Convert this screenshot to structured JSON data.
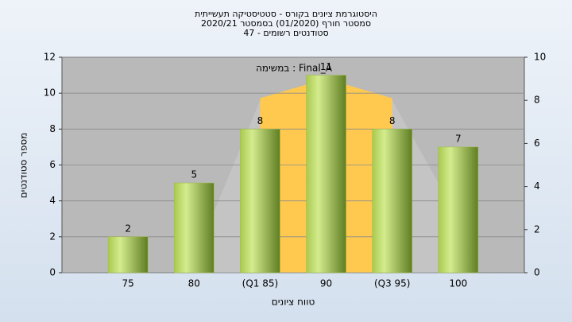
{
  "chart_data": {
    "type": "bar",
    "title": "היסטוגרמת ציונים בקורס - סטטיסטיקה תעשייתית",
    "subtitle": [
      "2020/21 סמסטר חורף (01/2020) בסמסטר",
      "47 - סטודנטים רשומים"
    ],
    "annotation": "במשימה : Final_A",
    "x_label": "טווח ציונים",
    "y_label": "מספר סטודנטים",
    "categories": [
      "75",
      "80",
      "(Q1 85)",
      "90",
      "(Q3 95)",
      "100"
    ],
    "values": [
      2,
      5,
      8,
      11,
      8,
      7
    ],
    "color": "#9dbb45",
    "areas": [
      {
        "color": "#c4c4c4",
        "axis": "y2",
        "values": [
          null,
          0.6,
          8,
          8.8,
          8,
          2.5
        ]
      },
      {
        "color": "#ffc94f",
        "axis": "y2",
        "values": [
          null,
          null,
          8.1,
          9,
          8.1,
          null
        ]
      }
    ],
    "ylim": [
      0,
      12
    ],
    "yticks": [
      0,
      2,
      4,
      6,
      8,
      10,
      12
    ],
    "y2lim": [
      0,
      10
    ],
    "y2ticks": [
      0,
      2,
      4,
      6,
      8,
      10
    ],
    "grid": true
  }
}
